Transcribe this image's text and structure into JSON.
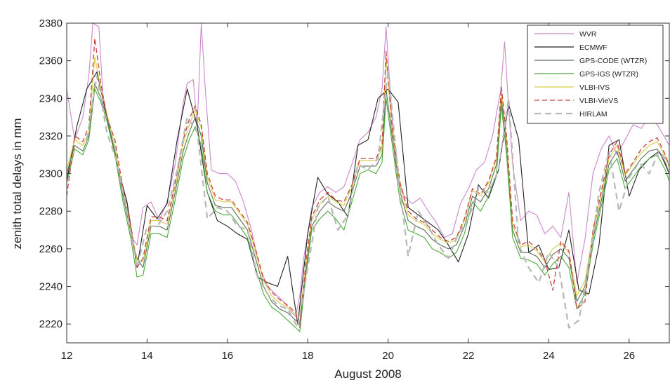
{
  "chart_data": {
    "type": "line",
    "title": "",
    "xlabel": "August 2008",
    "ylabel": "zenith total delays in mm",
    "xlim": [
      12,
      27
    ],
    "ylim": [
      2210,
      2380
    ],
    "xticks": [
      12,
      14,
      16,
      18,
      20,
      22,
      24,
      26
    ],
    "yticks": [
      2220,
      2240,
      2260,
      2280,
      2300,
      2320,
      2340,
      2360,
      2380
    ],
    "grid": false,
    "legend_position": "top-right",
    "series": [
      {
        "name": "WVR",
        "color": "#cc88cc",
        "style": "solid",
        "x": [
          12.0,
          12.2,
          12.4,
          12.55,
          12.65,
          12.8,
          12.9,
          13.1,
          13.3,
          13.5,
          13.65,
          13.75,
          13.9,
          14.1,
          14.3,
          14.5,
          14.7,
          14.9,
          15.0,
          15.15,
          15.25,
          15.35,
          15.45,
          15.6,
          15.8,
          16.0,
          16.2,
          16.4,
          16.6,
          16.8,
          17.0,
          17.2,
          17.4,
          17.6,
          17.7,
          17.8,
          17.9,
          18.1,
          18.3,
          18.5,
          18.7,
          18.9,
          19.1,
          19.3,
          19.5,
          19.7,
          19.85,
          19.95,
          20.05,
          20.2,
          20.4,
          20.6,
          20.8,
          21.0,
          21.2,
          21.4,
          21.6,
          21.8,
          22.0,
          22.2,
          22.4,
          22.6,
          22.8,
          22.9,
          23.0,
          23.1,
          23.3,
          23.5,
          23.7,
          23.9,
          24.1,
          24.3,
          24.5,
          24.7,
          24.9,
          25.1,
          25.3,
          25.5,
          25.7,
          25.9,
          26.1,
          26.3,
          26.5,
          26.7,
          27.0
        ],
        "y": [
          2345,
          2318,
          2330,
          2352,
          2380,
          2378,
          2342,
          2320,
          2300,
          2285,
          2265,
          2262,
          2282,
          2285,
          2275,
          2285,
          2305,
          2338,
          2348,
          2350,
          2325,
          2380,
          2345,
          2302,
          2300,
          2300,
          2296,
          2285,
          2270,
          2250,
          2240,
          2236,
          2232,
          2226,
          2224,
          2235,
          2255,
          2282,
          2290,
          2293,
          2290,
          2293,
          2305,
          2318,
          2322,
          2330,
          2345,
          2378,
          2345,
          2300,
          2288,
          2284,
          2287,
          2280,
          2274,
          2266,
          2268,
          2284,
          2292,
          2302,
          2306,
          2320,
          2344,
          2370,
          2335,
          2305,
          2275,
          2280,
          2278,
          2268,
          2272,
          2266,
          2290,
          2242,
          2265,
          2300,
          2313,
          2320,
          2310,
          2318,
          2326,
          2324,
          2330,
          2326,
          2315
        ]
      },
      {
        "name": "ECMWF",
        "color": "#222222",
        "style": "solid",
        "x": [
          12.0,
          12.25,
          12.5,
          12.75,
          13.0,
          13.25,
          13.5,
          13.75,
          14.0,
          14.25,
          14.5,
          14.75,
          15.0,
          15.25,
          15.5,
          15.75,
          16.0,
          16.25,
          16.5,
          16.75,
          17.0,
          17.25,
          17.5,
          17.75,
          18.0,
          18.25,
          18.5,
          18.75,
          19.0,
          19.25,
          19.5,
          19.75,
          20.0,
          20.25,
          20.5,
          20.75,
          21.0,
          21.25,
          21.5,
          21.75,
          22.0,
          22.25,
          22.5,
          22.75,
          23.0,
          23.25,
          23.5,
          23.75,
          24.0,
          24.25,
          24.5,
          24.75,
          25.0,
          25.25,
          25.5,
          25.75,
          26.0,
          26.25,
          26.5,
          26.75,
          27.0
        ],
        "y": [
          2296,
          2325,
          2345,
          2354,
          2330,
          2305,
          2285,
          2250,
          2283,
          2276,
          2284,
          2318,
          2345,
          2325,
          2290,
          2275,
          2272,
          2268,
          2265,
          2245,
          2242,
          2240,
          2256,
          2220,
          2268,
          2298,
          2289,
          2285,
          2277,
          2315,
          2318,
          2340,
          2345,
          2338,
          2282,
          2278,
          2274,
          2270,
          2262,
          2253,
          2268,
          2294,
          2287,
          2302,
          2337,
          2318,
          2258,
          2262,
          2249,
          2250,
          2270,
          2238,
          2236,
          2262,
          2315,
          2318,
          2288,
          2302,
          2308,
          2312,
          2300
        ]
      },
      {
        "name": "GPS-CODE (WTZR)",
        "color": "#5a6e5a",
        "style": "solid",
        "x": [
          12.0,
          12.2,
          12.4,
          12.55,
          12.7,
          12.85,
          13.0,
          13.2,
          13.4,
          13.6,
          13.75,
          13.9,
          14.1,
          14.3,
          14.5,
          14.7,
          14.9,
          15.05,
          15.2,
          15.35,
          15.5,
          15.7,
          15.9,
          16.1,
          16.3,
          16.5,
          16.7,
          16.9,
          17.1,
          17.3,
          17.5,
          17.7,
          17.8,
          17.95,
          18.1,
          18.3,
          18.5,
          18.7,
          18.9,
          19.1,
          19.3,
          19.5,
          19.7,
          19.85,
          19.95,
          20.1,
          20.3,
          20.5,
          20.7,
          20.9,
          21.1,
          21.3,
          21.5,
          21.7,
          21.9,
          22.1,
          22.3,
          22.5,
          22.7,
          22.82,
          22.95,
          23.1,
          23.3,
          23.5,
          23.7,
          23.9,
          24.1,
          24.3,
          24.5,
          24.7,
          24.9,
          25.1,
          25.3,
          25.5,
          25.7,
          25.9,
          26.1,
          26.3,
          26.5,
          26.7,
          26.9,
          27.0
        ],
        "y": [
          2300,
          2315,
          2312,
          2320,
          2348,
          2340,
          2330,
          2312,
          2288,
          2268,
          2255,
          2250,
          2272,
          2272,
          2270,
          2290,
          2312,
          2322,
          2330,
          2320,
          2295,
          2283,
          2282,
          2282,
          2276,
          2270,
          2255,
          2240,
          2232,
          2228,
          2226,
          2222,
          2220,
          2248,
          2272,
          2280,
          2285,
          2282,
          2280,
          2290,
          2304,
          2304,
          2304,
          2310,
          2345,
          2320,
          2290,
          2275,
          2272,
          2270,
          2265,
          2262,
          2260,
          2262,
          2272,
          2288,
          2285,
          2292,
          2305,
          2340,
          2315,
          2270,
          2258,
          2258,
          2256,
          2250,
          2257,
          2260,
          2255,
          2232,
          2240,
          2265,
          2285,
          2305,
          2312,
          2296,
          2302,
          2308,
          2312,
          2313,
          2306,
          2300
        ]
      },
      {
        "name": "GPS-IGS (WTZR)",
        "color": "#4caa3c",
        "style": "solid",
        "x": [
          12.0,
          12.2,
          12.4,
          12.55,
          12.7,
          12.85,
          13.0,
          13.2,
          13.4,
          13.6,
          13.75,
          13.9,
          14.1,
          14.3,
          14.5,
          14.7,
          14.9,
          15.05,
          15.2,
          15.35,
          15.5,
          15.7,
          15.9,
          16.1,
          16.3,
          16.5,
          16.7,
          16.9,
          17.1,
          17.3,
          17.5,
          17.7,
          17.8,
          17.95,
          18.1,
          18.3,
          18.5,
          18.7,
          18.9,
          19.1,
          19.3,
          19.5,
          19.7,
          19.85,
          19.95,
          20.1,
          20.3,
          20.5,
          20.7,
          20.9,
          21.1,
          21.3,
          21.5,
          21.7,
          21.9,
          22.1,
          22.3,
          22.5,
          22.7,
          22.82,
          22.95,
          23.1,
          23.3,
          23.5,
          23.7,
          23.9,
          24.1,
          24.3,
          24.5,
          24.7,
          24.9,
          25.1,
          25.3,
          25.5,
          25.7,
          25.9,
          26.1,
          26.3,
          26.5,
          26.7,
          26.9,
          27.0
        ],
        "y": [
          2295,
          2313,
          2310,
          2318,
          2345,
          2338,
          2328,
          2310,
          2285,
          2265,
          2245,
          2246,
          2268,
          2268,
          2266,
          2286,
          2308,
          2318,
          2325,
          2315,
          2290,
          2280,
          2278,
          2278,
          2272,
          2266,
          2250,
          2236,
          2229,
          2226,
          2222,
          2218,
          2216,
          2245,
          2270,
          2276,
          2280,
          2276,
          2270,
          2285,
          2300,
          2302,
          2300,
          2306,
          2340,
          2316,
          2285,
          2270,
          2268,
          2266,
          2260,
          2258,
          2255,
          2258,
          2268,
          2285,
          2280,
          2288,
          2300,
          2336,
          2310,
          2266,
          2255,
          2254,
          2252,
          2246,
          2252,
          2256,
          2250,
          2228,
          2236,
          2262,
          2282,
          2302,
          2308,
          2292,
          2298,
          2304,
          2308,
          2310,
          2302,
          2296
        ]
      },
      {
        "name": "VLBI-IVS",
        "color": "#d8d040",
        "style": "solid",
        "x": [
          12.0,
          12.2,
          12.4,
          12.55,
          12.7,
          12.85,
          13.0,
          13.2,
          13.4,
          13.6,
          13.75,
          13.9,
          14.1,
          14.3,
          14.5,
          14.7,
          14.9,
          15.05,
          15.2,
          15.35,
          15.5,
          15.7,
          15.9,
          16.1,
          16.3,
          16.5,
          16.7,
          16.9,
          17.1,
          17.3,
          17.5,
          17.7,
          17.8,
          17.95,
          18.1,
          18.3,
          18.5,
          18.7,
          18.9,
          19.1,
          19.3,
          19.5,
          19.7,
          19.85,
          19.95,
          20.1,
          20.3,
          20.5,
          20.7,
          20.9,
          21.1,
          21.3,
          21.5,
          21.7,
          21.9,
          22.1,
          22.3,
          22.5,
          22.7,
          22.82,
          22.95,
          23.1,
          23.3,
          23.5,
          23.7,
          23.9,
          24.1,
          24.3,
          24.5,
          24.7,
          24.9,
          25.1,
          25.3,
          25.5,
          25.7,
          25.9,
          26.1,
          26.3,
          26.5,
          26.7,
          26.9,
          27.0
        ],
        "y": [
          2302,
          2318,
          2315,
          2322,
          2362,
          2345,
          2332,
          2315,
          2290,
          2270,
          2254,
          2253,
          2275,
          2275,
          2273,
          2293,
          2316,
          2326,
          2334,
          2324,
          2298,
          2286,
          2285,
          2285,
          2279,
          2273,
          2258,
          2243,
          2235,
          2231,
          2229,
          2225,
          2224,
          2250,
          2275,
          2284,
          2288,
          2285,
          2283,
          2293,
          2307,
          2307,
          2307,
          2313,
          2362,
          2323,
          2293,
          2278,
          2275,
          2273,
          2268,
          2265,
          2263,
          2265,
          2275,
          2291,
          2288,
          2295,
          2308,
          2344,
          2318,
          2273,
          2261,
          2262,
          2259,
          2253,
          2260,
          2263,
          2258,
          2235,
          2243,
          2268,
          2288,
          2308,
          2315,
          2299,
          2305,
          2311,
          2315,
          2317,
          2309,
          2303
        ]
      },
      {
        "name": "VLBI-VieVS",
        "color": "#c84040",
        "style": "dashed",
        "x": [
          12.0,
          12.2,
          12.4,
          12.55,
          12.7,
          12.85,
          13.0,
          13.2,
          13.4,
          13.6,
          13.75,
          13.9,
          14.1,
          14.3,
          14.5,
          14.7,
          14.9,
          15.05,
          15.2,
          15.35,
          15.5,
          15.7,
          15.9,
          16.1,
          16.3,
          16.5,
          16.7,
          16.9,
          17.1,
          17.3,
          17.5,
          17.7,
          17.8,
          17.95,
          18.1,
          18.3,
          18.5,
          18.7,
          18.9,
          19.1,
          19.3,
          19.5,
          19.7,
          19.85,
          19.95,
          20.1,
          20.3,
          20.5,
          20.7,
          20.9,
          21.1,
          21.3,
          21.5,
          21.7,
          21.9,
          22.1,
          22.3,
          22.5,
          22.7,
          22.82,
          22.95,
          23.1,
          23.3,
          23.5,
          23.7,
          23.9,
          24.1,
          24.3,
          24.5,
          24.7,
          24.9,
          25.1,
          25.3,
          25.5,
          25.7,
          25.9,
          26.1,
          26.3,
          26.5,
          26.7,
          26.9,
          27.0
        ],
        "y": [
          2288,
          2320,
          2317,
          2325,
          2372,
          2348,
          2330,
          2318,
          2292,
          2272,
          2250,
          2255,
          2277,
          2277,
          2275,
          2295,
          2318,
          2329,
          2336,
          2326,
          2300,
          2288,
          2286,
          2286,
          2280,
          2274,
          2260,
          2244,
          2237,
          2233,
          2230,
          2226,
          2218,
          2252,
          2277,
          2286,
          2290,
          2286,
          2285,
          2294,
          2308,
          2308,
          2308,
          2315,
          2365,
          2325,
          2295,
          2280,
          2276,
          2274,
          2270,
          2266,
          2264,
          2266,
          2276,
          2292,
          2289,
          2296,
          2309,
          2346,
          2320,
          2275,
          2262,
          2264,
          2260,
          2254,
          2238,
          2264,
          2259,
          2228,
          2232,
          2270,
          2290,
          2310,
          2317,
          2300,
          2306,
          2313,
          2317,
          2319,
          2310,
          2304
        ]
      },
      {
        "name": "HIRLAM",
        "color": "#b8b8b8",
        "style": "dashed",
        "x": [
          12.5,
          12.75,
          13.0,
          13.25,
          13.5,
          13.75,
          14.0,
          14.25,
          14.5,
          14.75,
          15.0,
          15.25,
          15.5,
          15.75,
          16.0,
          16.25,
          16.5,
          16.75,
          17.0,
          17.25,
          17.5,
          17.75,
          18.0,
          18.25,
          18.5,
          18.75,
          19.0,
          19.25,
          19.5,
          19.75,
          20.0,
          20.25,
          20.5,
          20.75,
          21.0,
          21.25,
          21.5,
          21.75,
          22.0,
          22.25,
          22.5,
          22.75,
          23.0,
          23.25,
          23.5,
          23.75,
          24.0,
          24.25,
          24.5,
          24.75,
          25.0,
          25.25,
          25.5,
          25.75,
          26.0,
          26.25,
          26.5,
          26.75,
          27.0
        ],
        "y": [
          2318,
          2352,
          2322,
          2306,
          2280,
          2250,
          2272,
          2272,
          2280,
          2302,
          2330,
          2322,
          2276,
          2282,
          2280,
          2272,
          2270,
          2245,
          2236,
          2230,
          2228,
          2218,
          2250,
          2282,
          2288,
          2270,
          2278,
          2305,
          2302,
          2308,
          2355,
          2300,
          2256,
          2280,
          2272,
          2262,
          2255,
          2268,
          2276,
          2292,
          2290,
          2302,
          2340,
          2262,
          2250,
          2242,
          2258,
          2250,
          2218,
          2222,
          2252,
          2290,
          2312,
          2280,
          2298,
          2306,
          2300,
          2312,
          2305
        ]
      }
    ]
  }
}
